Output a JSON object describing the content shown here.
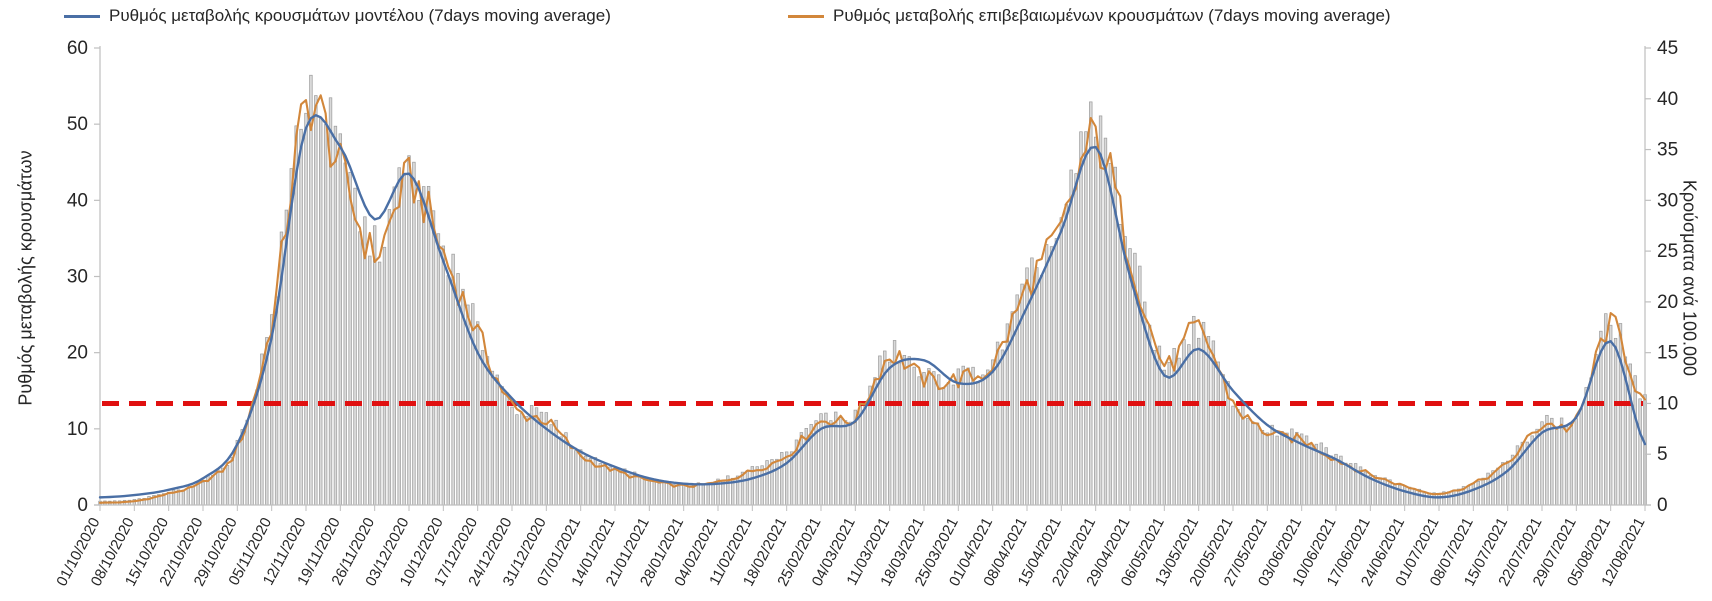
{
  "chart_data": {
    "type": "bar",
    "description": "Daily gray bars of confirmed case rate with two 7-day moving average lines and a red dashed reference line",
    "left_axis": {
      "label": "Ρυθμός μεταβολής κρουσμάτων",
      "min": 0,
      "max": 60,
      "ticks": [
        0,
        10,
        20,
        30,
        40,
        50,
        60
      ]
    },
    "right_axis": {
      "label": "Κρούσματα ανά 100.000",
      "min": 0,
      "max": 45,
      "ticks": [
        0,
        5,
        10,
        15,
        20,
        25,
        30,
        35,
        40,
        45
      ]
    },
    "x_tick_labels": [
      "01/10/2020",
      "08/10/2020",
      "15/10/2020",
      "22/10/2020",
      "29/10/2020",
      "05/11/2020",
      "12/11/2020",
      "19/11/2020",
      "26/11/2020",
      "03/12/2020",
      "10/12/2020",
      "17/12/2020",
      "24/12/2020",
      "31/12/2020",
      "07/01/2021",
      "14/01/2021",
      "21/01/2021",
      "28/01/2021",
      "04/02/2021",
      "11/02/2021",
      "18/02/2021",
      "25/02/2021",
      "04/03/2021",
      "11/03/2021",
      "18/03/2021",
      "25/03/2021",
      "01/04/2021",
      "08/04/2021",
      "15/04/2021",
      "22/04/2021",
      "29/04/2021",
      "06/05/2021",
      "13/05/2021",
      "20/05/2021",
      "27/05/2021",
      "03/06/2021",
      "10/06/2021",
      "17/06/2021",
      "24/06/2021",
      "01/07/2021",
      "08/07/2021",
      "15/07/2021",
      "22/07/2021",
      "29/07/2021",
      "05/08/2021",
      "12/08/2021"
    ],
    "series": [
      {
        "name": "Ρυθμός μεταβολής κρουσμάτων μοντέλου (7days moving average)",
        "type": "line",
        "color": "#4a6fa5",
        "weekly_values": [
          1.0,
          1.3,
          2.0,
          3.5,
          8.0,
          22,
          49.5,
          47,
          37.5,
          43.5,
          32,
          20,
          14,
          10,
          7,
          5,
          3.5,
          2.8,
          2.8,
          3.5,
          5.5,
          10,
          11,
          18,
          19,
          16,
          17.5,
          26,
          36,
          47,
          30,
          17,
          20.5,
          15,
          10.5,
          8,
          6,
          3.5,
          1.8,
          1.0,
          2.0,
          4.5,
          9.5,
          11.5,
          21.5,
          8
        ]
      },
      {
        "name": "Ρυθμός μεταβολής επιβεβαιωμένων κρουσμάτων (7days moving average)",
        "type": "line",
        "color": "#d2873b",
        "weekly_values": [
          0.3,
          0.5,
          1.5,
          3.0,
          7.5,
          24,
          52,
          44,
          33,
          42.5,
          33,
          22.5,
          13,
          11,
          6.5,
          4.5,
          3.2,
          2.5,
          3.0,
          4.5,
          6.5,
          11,
          11.5,
          19.5,
          16.5,
          16.5,
          18.5,
          28.5,
          36,
          48,
          33,
          18.5,
          23,
          13.5,
          9.5,
          8.5,
          6,
          4,
          2.5,
          1.5,
          2.8,
          5.5,
          10.5,
          11,
          23.5,
          13
        ]
      },
      {
        "name": "daily-case-rate-bars",
        "type": "bar",
        "fill": "#d9d9d9",
        "stroke": "#9b9b9b",
        "weekly_envelope": [
          0.5,
          0.7,
          1.7,
          3.2,
          8,
          25,
          54,
          46,
          34,
          44,
          34,
          23,
          13.5,
          11.5,
          7,
          5,
          3.4,
          2.6,
          3.2,
          4.8,
          7,
          11.5,
          12,
          20,
          17,
          17,
          19,
          29,
          37,
          50,
          34,
          19,
          23.5,
          14,
          10,
          9,
          6.5,
          4.2,
          2.6,
          1.6,
          3,
          5.8,
          11,
          11.5,
          24,
          13.5
        ]
      }
    ],
    "reference_line": {
      "left_axis_value": 13.33,
      "right_axis_value": 10,
      "color": "#e01010",
      "style": "dashed"
    }
  }
}
